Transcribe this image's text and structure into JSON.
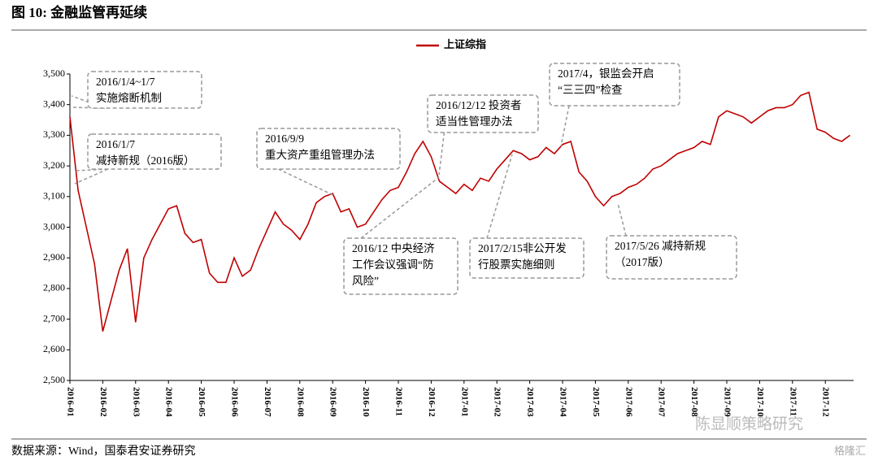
{
  "header": {
    "title": "图 10:  金融监管再延续"
  },
  "chart_data": {
    "type": "line",
    "categories": [
      "2016-01",
      null,
      null,
      null,
      "2016-02",
      null,
      null,
      null,
      "2016-03",
      null,
      null,
      null,
      "2016-04",
      null,
      null,
      null,
      "2016-05",
      null,
      null,
      null,
      "2016-06",
      null,
      null,
      null,
      "2016-07",
      null,
      null,
      null,
      "2016-08",
      null,
      null,
      null,
      "2016-09",
      null,
      null,
      null,
      "2016-10",
      null,
      null,
      null,
      "2016-11",
      null,
      null,
      null,
      "2016-12",
      null,
      null,
      null,
      "2017-01",
      null,
      null,
      null,
      "2017-02",
      null,
      null,
      null,
      "2017-03",
      null,
      null,
      null,
      "2017-04",
      null,
      null,
      null,
      "2017-05",
      null,
      null,
      null,
      "2017-06",
      null,
      null,
      null,
      "2017-07",
      null,
      null,
      null,
      "2017-08",
      null,
      null,
      null,
      "2017-09",
      null,
      null,
      null,
      "2017-10",
      null,
      null,
      null,
      "2017-11",
      null,
      null,
      null,
      "2017-12",
      null,
      null,
      null
    ],
    "series": [
      {
        "name": "上证综指",
        "color": "#c00000",
        "values": [
          3360,
          3120,
          3000,
          2880,
          2660,
          2760,
          2860,
          2930,
          2690,
          2900,
          2960,
          3010,
          3060,
          3070,
          2980,
          2950,
          2960,
          2850,
          2820,
          2820,
          2900,
          2840,
          2860,
          2930,
          2990,
          3050,
          3010,
          2990,
          2960,
          3010,
          3080,
          3100,
          3110,
          3050,
          3060,
          3000,
          3010,
          3050,
          3090,
          3120,
          3130,
          3180,
          3240,
          3280,
          3230,
          3150,
          3130,
          3110,
          3140,
          3120,
          3160,
          3150,
          3190,
          3220,
          3250,
          3240,
          3220,
          3230,
          3260,
          3240,
          3270,
          3280,
          3180,
          3150,
          3100,
          3070,
          3100,
          3110,
          3130,
          3140,
          3160,
          3190,
          3200,
          3220,
          3240,
          3250,
          3260,
          3280,
          3270,
          3360,
          3380,
          3370,
          3360,
          3340,
          3360,
          3380,
          3390,
          3390,
          3400,
          3430,
          3440,
          3320,
          3310,
          3290,
          3280,
          3300
        ]
      }
    ],
    "ylim": [
      2500,
      3500
    ],
    "yticks": [
      {
        "value": 2500,
        "label": "2,500"
      },
      {
        "value": 2600,
        "label": "2,600"
      },
      {
        "value": 2700,
        "label": "2,700"
      },
      {
        "value": 2800,
        "label": "2,800"
      },
      {
        "value": 2900,
        "label": "2,900"
      },
      {
        "value": 3000,
        "label": "3,000"
      },
      {
        "value": 3100,
        "label": "3,100"
      },
      {
        "value": 3200,
        "label": "3,200"
      },
      {
        "value": 3300,
        "label": "3,300"
      },
      {
        "value": 3400,
        "label": "3,400"
      },
      {
        "value": 3500,
        "label": "3,500"
      }
    ],
    "annotations": [
      [
        "2016/1/4~1/7",
        "实施熔断机制"
      ],
      [
        "2016/1/7",
        "减持新规（2016版）"
      ],
      [
        "2016/9/9",
        "重大资产重组管理办法"
      ],
      [
        "2016/12/12 投资者",
        "适当性管理办法"
      ],
      [
        "2017/4，银监会开启",
        "“三三四”检查"
      ],
      [
        "2016/12  中央经济",
        "工作会议强调“防",
        "风险”"
      ],
      [
        "2017/2/15非公开发",
        "行股票实施细则"
      ],
      [
        "2017/5/26 减持新规",
        "（2017版）"
      ]
    ]
  },
  "footer": {
    "source": "数据来源：Wind，国泰君安证券研究",
    "watermark": "陈显顺策略研究",
    "logo": "格隆汇"
  }
}
